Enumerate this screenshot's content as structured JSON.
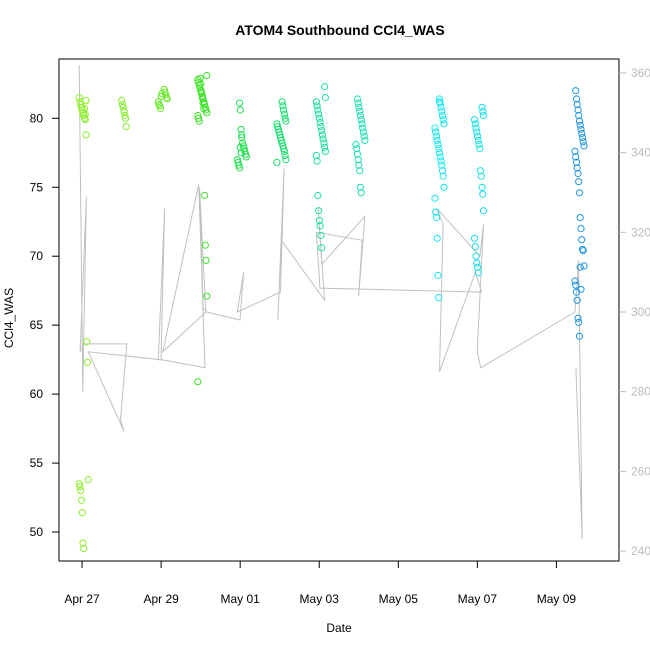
{
  "chart_data": {
    "type": "scatter",
    "title": "ATOM4 Southbound CCl4_WAS",
    "xlabel": "Date",
    "ylabel": "CCl4_WAS",
    "xlim": [
      "2018-04-26T10:00",
      "2018-05-10T14:00"
    ],
    "ylim": [
      47.9,
      84.3
    ],
    "y2lim": [
      237.5,
      363.5
    ],
    "x_ticks": [
      {
        "label": "Apr 27",
        "date": "2018-04-27"
      },
      {
        "label": "Apr 29",
        "date": "2018-04-29"
      },
      {
        "label": "May 01",
        "date": "2018-05-01"
      },
      {
        "label": "May 03",
        "date": "2018-05-03"
      },
      {
        "label": "May 05",
        "date": "2018-05-05"
      },
      {
        "label": "May 07",
        "date": "2018-05-07"
      },
      {
        "label": "May 09",
        "date": "2018-05-09"
      }
    ],
    "y_ticks": [
      50,
      55,
      60,
      65,
      70,
      75,
      80
    ],
    "y2_ticks": [
      240,
      260,
      280,
      300,
      320,
      340,
      360
    ],
    "grid": false,
    "colors": {
      "apr27": "#8cf02a",
      "apr28": "#84ee2d",
      "apr29": "#6ae82a",
      "apr30": "#3fe42a",
      "may01": "#1fe050",
      "may02": "#19e06e",
      "may03": "#1ee0a0",
      "may04": "#1ee0b4",
      "may06": "#19e8f0",
      "may07": "#1ce0e8",
      "may09": "#1e96e0",
      "line": "#c0c0c0"
    },
    "series": [
      {
        "color_key": "apr27",
        "x": [
          "2018-04-27T01:00",
          "2018-04-27T01:00",
          "2018-04-27T01:00",
          "2018-04-27T01:00",
          "2018-04-27T01:00",
          "2018-04-27T01:00",
          "2018-04-27T01:00",
          "2018-04-27T01:00",
          "2018-04-27T01:00",
          "2018-04-27T01:00",
          "2018-04-27T01:00",
          "2018-04-27T01:00",
          "2018-04-27T01:00",
          "2018-04-27T01:00",
          "2018-04-27T01:00",
          "2018-04-27T01:00",
          "2018-04-27T01:00",
          "2018-04-27T01:00",
          "2018-04-27T01:00",
          "2018-04-27T01:00",
          "2018-04-27T01:00",
          "2018-04-27T01:00",
          "2018-04-27T01:00"
        ],
        "y": [
          81.5,
          81.2,
          81.0,
          80.8,
          80.6,
          80.4,
          80.2,
          80.0,
          79.9,
          78.8,
          63.8,
          62.3,
          53.8,
          53.5,
          53.3,
          53.0,
          52.3,
          51.4,
          49.2,
          48.8,
          80.7,
          80.3,
          81.3
        ]
      },
      {
        "color_key": "apr28",
        "x": [
          "2018-04-28T01:00",
          "2018-04-28T01:00",
          "2018-04-28T01:00",
          "2018-04-28T01:00",
          "2018-04-28T01:00",
          "2018-04-28T01:00",
          "2018-04-28T01:00"
        ],
        "y": [
          81.3,
          81.0,
          80.8,
          80.5,
          80.2,
          80.0,
          79.4
        ]
      },
      {
        "color_key": "apr29",
        "x": [
          "2018-04-29T01:00",
          "2018-04-29T01:00",
          "2018-04-29T01:00",
          "2018-04-29T01:00",
          "2018-04-29T01:00",
          "2018-04-29T01:00",
          "2018-04-29T01:00",
          "2018-04-29T01:00",
          "2018-04-29T01:00",
          "2018-04-29T01:00",
          "2018-04-29T01:00"
        ],
        "y": [
          82.1,
          81.9,
          81.7,
          81.5,
          81.4,
          81.2,
          81.0,
          80.9,
          80.7,
          81.6,
          81.8
        ]
      },
      {
        "color_key": "apr30",
        "x": [
          "2018-04-30T01:00",
          "2018-04-30T01:00",
          "2018-04-30T01:00",
          "2018-04-30T01:00",
          "2018-04-30T01:00",
          "2018-04-30T01:00",
          "2018-04-30T01:00",
          "2018-04-30T01:00",
          "2018-04-30T01:00",
          "2018-04-30T01:00",
          "2018-04-30T01:00",
          "2018-04-30T01:00",
          "2018-04-30T01:00",
          "2018-04-30T01:00",
          "2018-04-30T01:00",
          "2018-04-30T01:00",
          "2018-04-30T01:00",
          "2018-04-30T01:00",
          "2018-04-30T01:00",
          "2018-04-30T01:00",
          "2018-04-30T01:00",
          "2018-04-30T01:00",
          "2018-04-30T01:00",
          "2018-04-30T01:00",
          "2018-04-30T01:00",
          "2018-04-30T01:00",
          "2018-04-30T01:00",
          "2018-04-30T01:00"
        ],
        "y": [
          83.1,
          82.8,
          82.6,
          82.4,
          82.2,
          82.0,
          81.8,
          81.6,
          81.4,
          81.2,
          81.0,
          80.8,
          80.6,
          80.4,
          80.2,
          80.0,
          79.8,
          82.9,
          82.5,
          81.9,
          81.5,
          81.1,
          80.7,
          74.4,
          70.8,
          69.7,
          67.1,
          60.9
        ]
      },
      {
        "color_key": "may01",
        "x": [
          "2018-05-01T01:00",
          "2018-05-01T01:00",
          "2018-05-01T01:00",
          "2018-05-01T01:00",
          "2018-05-01T01:00",
          "2018-05-01T01:00",
          "2018-05-01T01:00",
          "2018-05-01T01:00",
          "2018-05-01T01:00",
          "2018-05-01T01:00",
          "2018-05-01T01:00",
          "2018-05-01T01:00",
          "2018-05-01T01:00",
          "2018-05-01T01:00",
          "2018-05-01T01:00",
          "2018-05-01T01:00",
          "2018-05-01T01:00"
        ],
        "y": [
          81.1,
          80.6,
          79.2,
          78.6,
          78.2,
          78.0,
          77.8,
          77.6,
          77.4,
          77.2,
          77.0,
          76.8,
          76.6,
          76.4,
          77.9,
          77.5,
          78.8
        ]
      },
      {
        "color_key": "may02",
        "x": [
          "2018-05-02T01:00",
          "2018-05-02T01:00",
          "2018-05-02T01:00",
          "2018-05-02T01:00",
          "2018-05-02T01:00",
          "2018-05-02T01:00",
          "2018-05-02T01:00",
          "2018-05-02T01:00",
          "2018-05-02T01:00",
          "2018-05-02T01:00",
          "2018-05-02T01:00",
          "2018-05-02T01:00",
          "2018-05-02T01:00",
          "2018-05-02T01:00",
          "2018-05-02T01:00",
          "2018-05-02T01:00",
          "2018-05-02T01:00",
          "2018-05-02T01:00",
          "2018-05-02T01:00",
          "2018-05-02T01:00"
        ],
        "y": [
          81.2,
          80.9,
          80.6,
          80.3,
          80.0,
          79.8,
          79.6,
          79.4,
          79.2,
          79.0,
          78.8,
          78.6,
          78.4,
          78.2,
          78.0,
          77.8,
          77.6,
          77.3,
          77.0,
          76.8
        ]
      },
      {
        "color_key": "may03",
        "x": [
          "2018-05-03T01:00",
          "2018-05-03T01:00",
          "2018-05-03T01:00",
          "2018-05-03T01:00",
          "2018-05-03T01:00",
          "2018-05-03T01:00",
          "2018-05-03T01:00",
          "2018-05-03T01:00",
          "2018-05-03T01:00",
          "2018-05-03T01:00",
          "2018-05-03T01:00",
          "2018-05-03T01:00",
          "2018-05-03T01:00",
          "2018-05-03T01:00",
          "2018-05-03T01:00",
          "2018-05-03T01:00",
          "2018-05-03T01:00",
          "2018-05-03T01:00",
          "2018-05-03T01:00",
          "2018-05-03T01:00",
          "2018-05-03T01:00",
          "2018-05-03T01:00",
          "2018-05-03T01:00"
        ],
        "y": [
          82.3,
          81.5,
          81.2,
          80.9,
          80.6,
          80.3,
          80.0,
          79.7,
          79.4,
          79.1,
          78.8,
          78.5,
          78.2,
          77.9,
          77.6,
          77.3,
          76.9,
          74.4,
          73.3,
          72.6,
          72.2,
          71.5,
          70.6
        ]
      },
      {
        "color_key": "may04",
        "x": [
          "2018-05-04T01:00",
          "2018-05-04T01:00",
          "2018-05-04T01:00",
          "2018-05-04T01:00",
          "2018-05-04T01:00",
          "2018-05-04T01:00",
          "2018-05-04T01:00",
          "2018-05-04T01:00",
          "2018-05-04T01:00",
          "2018-05-04T01:00",
          "2018-05-04T01:00",
          "2018-05-04T01:00",
          "2018-05-04T01:00",
          "2018-05-04T01:00",
          "2018-05-04T01:00",
          "2018-05-04T01:00",
          "2018-05-04T01:00",
          "2018-05-04T01:00",
          "2018-05-04T01:00"
        ],
        "y": [
          81.4,
          81.1,
          80.8,
          80.5,
          80.2,
          79.9,
          79.6,
          79.3,
          79.0,
          78.7,
          78.4,
          78.1,
          77.8,
          77.4,
          77.0,
          76.6,
          76.2,
          75.0,
          74.6
        ]
      },
      {
        "color_key": "may06",
        "x": [
          "2018-05-06T01:00",
          "2018-05-06T01:00",
          "2018-05-06T01:00",
          "2018-05-06T01:00",
          "2018-05-06T01:00",
          "2018-05-06T01:00",
          "2018-05-06T01:00",
          "2018-05-06T01:00",
          "2018-05-06T01:00",
          "2018-05-06T01:00",
          "2018-05-06T01:00",
          "2018-05-06T01:00",
          "2018-05-06T01:00",
          "2018-05-06T01:00",
          "2018-05-06T01:00",
          "2018-05-06T01:00",
          "2018-05-06T01:00",
          "2018-05-06T01:00",
          "2018-05-06T01:00",
          "2018-05-06T01:00",
          "2018-05-06T01:00",
          "2018-05-06T01:00",
          "2018-05-06T01:00",
          "2018-05-06T01:00",
          "2018-05-06T01:00",
          "2018-05-06T01:00",
          "2018-05-06T01:00"
        ],
        "y": [
          81.4,
          81.1,
          80.8,
          80.5,
          80.2,
          79.9,
          79.6,
          79.3,
          79.0,
          78.7,
          78.4,
          78.1,
          77.8,
          77.5,
          77.2,
          76.9,
          76.6,
          76.2,
          75.8,
          75.0,
          74.2,
          73.2,
          72.8,
          71.3,
          68.6,
          67.0,
          81.2
        ]
      },
      {
        "color_key": "may07",
        "x": [
          "2018-05-07T01:00",
          "2018-05-07T01:00",
          "2018-05-07T01:00",
          "2018-05-07T01:00",
          "2018-05-07T01:00",
          "2018-05-07T01:00",
          "2018-05-07T01:00",
          "2018-05-07T01:00",
          "2018-05-07T01:00",
          "2018-05-07T01:00",
          "2018-05-07T01:00",
          "2018-05-07T01:00",
          "2018-05-07T01:00",
          "2018-05-07T01:00",
          "2018-05-07T01:00",
          "2018-05-07T01:00",
          "2018-05-07T01:00",
          "2018-05-07T01:00",
          "2018-05-07T01:00",
          "2018-05-07T01:00",
          "2018-05-07T01:00",
          "2018-05-07T01:00"
        ],
        "y": [
          80.8,
          80.5,
          80.2,
          79.9,
          79.6,
          79.3,
          79.0,
          78.7,
          78.4,
          78.1,
          77.8,
          76.2,
          75.8,
          75.0,
          74.5,
          73.3,
          71.3,
          70.7,
          70.0,
          69.5,
          69.2,
          68.8
        ]
      },
      {
        "color_key": "may09",
        "x": [
          "2018-05-09T14:00",
          "2018-05-09T14:00",
          "2018-05-09T14:00",
          "2018-05-09T14:00",
          "2018-05-09T14:00",
          "2018-05-09T14:00",
          "2018-05-09T14:00",
          "2018-05-09T14:00",
          "2018-05-09T14:00",
          "2018-05-09T14:00",
          "2018-05-09T14:00",
          "2018-05-09T14:00",
          "2018-05-09T14:00",
          "2018-05-09T14:00",
          "2018-05-09T14:00",
          "2018-05-09T14:00",
          "2018-05-09T14:00",
          "2018-05-09T14:00",
          "2018-05-09T14:00",
          "2018-05-09T14:00",
          "2018-05-09T14:00",
          "2018-05-09T14:00",
          "2018-05-09T14:00",
          "2018-05-09T14:00",
          "2018-05-09T14:00",
          "2018-05-09T14:00",
          "2018-05-09T14:00",
          "2018-05-09T14:00",
          "2018-05-09T14:00",
          "2018-05-09T14:00",
          "2018-05-09T14:00",
          "2018-05-09T14:00",
          "2018-05-09T14:00",
          "2018-05-09T14:00"
        ],
        "y": [
          82.0,
          81.4,
          81.0,
          80.6,
          80.2,
          79.8,
          79.5,
          79.2,
          78.9,
          78.6,
          78.3,
          78.0,
          77.6,
          77.2,
          76.8,
          76.4,
          76.0,
          75.4,
          74.6,
          72.8,
          72.0,
          71.2,
          70.5,
          70.4,
          69.3,
          68.2,
          67.9,
          67.4,
          66.8,
          65.5,
          65.2,
          64.2,
          69.2,
          67.6
        ]
      }
    ],
    "line_series": {
      "axis": "right",
      "color_key": "line",
      "x": [
        "2018-04-27T01:00",
        "2018-04-27T01:00",
        "2018-04-27T01:00",
        "2018-04-27T01:00",
        "2018-04-27T01:00",
        "2018-04-28T01:00",
        "2018-04-28T01:00",
        "2018-04-28T01:00",
        "2018-04-27T01:00",
        "2018-04-29T01:00",
        "2018-04-29T01:00",
        "2018-04-29T01:00",
        "2018-04-29T01:00",
        "2018-04-30T01:00",
        "2018-04-30T01:00",
        "2018-04-29T01:00",
        "2018-04-30T01:00",
        "2018-04-30T01:00",
        "2018-04-30T01:00",
        "2018-04-30T01:00",
        "2018-05-01T01:00",
        "2018-05-01T01:00",
        "2018-05-01T01:00",
        "2018-05-02T01:00",
        "2018-05-02T01:00",
        "2018-05-02T01:00",
        "2018-05-02T01:00",
        "2018-05-03T01:00",
        "2018-05-03T01:00",
        "2018-05-03T01:00",
        "2018-05-04T01:00",
        "2018-05-04T01:00",
        "2018-05-04T01:00",
        "2018-05-03T01:00",
        "2018-05-03T01:00",
        "2018-05-07T01:00",
        "2018-05-07T01:00",
        "2018-05-06T01:00",
        "2018-05-06T01:00",
        "2018-05-06T01:00",
        "2018-05-07T01:00",
        "2018-05-07T01:00",
        "2018-05-07T01:00",
        "2018-05-07T01:00",
        "2018-05-09T14:00",
        "2018-05-09T14:00",
        "2018-05-09T14:00",
        "2018-05-09T14:00"
      ],
      "y": [
        362,
        280,
        329,
        290,
        292,
        292,
        273,
        270,
        290,
        288,
        326,
        288,
        288,
        286,
        332,
        290,
        300,
        331,
        301,
        300,
        298,
        310,
        300,
        305,
        336,
        298,
        318,
        303,
        326,
        312,
        324,
        304,
        318,
        320,
        306,
        305,
        310,
        285,
        322,
        326,
        314,
        322,
        290,
        286,
        300,
        313,
        243,
        286
      ]
    }
  }
}
